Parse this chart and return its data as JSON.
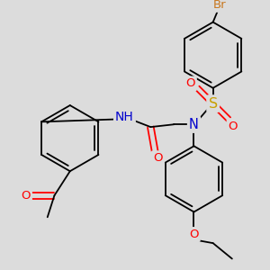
{
  "background_color": "#dcdcdc",
  "colors": {
    "O": "#ff0000",
    "N": "#0000cd",
    "S": "#c8a000",
    "Br": "#c87820",
    "H": "#5fa0a0",
    "C": "#000000"
  },
  "bond_lw": 1.3,
  "font_size": 9.5
}
